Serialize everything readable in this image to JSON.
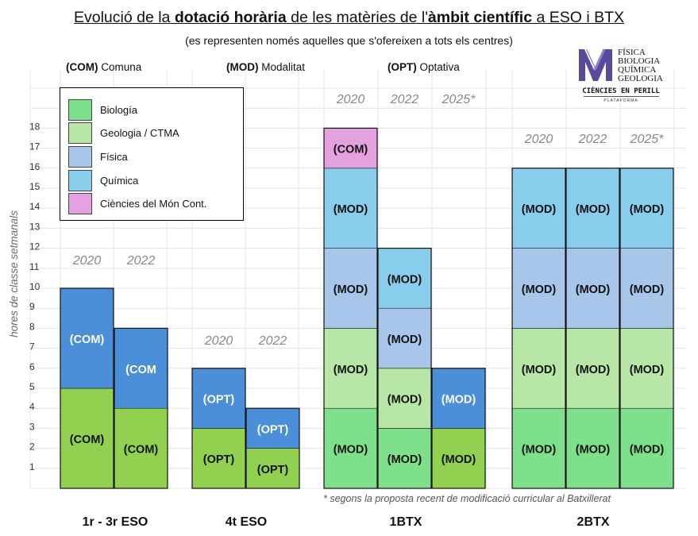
{
  "title": {
    "part1": "Evolució de la ",
    "bold1": "dotació horària",
    "part2": " de les matèries de l'",
    "bold2": "àmbit científic",
    "part3": " a ESO i BTX"
  },
  "subtitle": "(es representen només aquelles que s'ofereixen a tots els centres)",
  "types": [
    {
      "code": "(COM)",
      "name": "Comuna"
    },
    {
      "code": "(MOD)",
      "name": "Modalitat"
    },
    {
      "code": "(OPT)",
      "name": "Optativa"
    }
  ],
  "logo": {
    "lines": [
      "FÍSICA",
      "BIOLOGIA",
      "QUÍMICA",
      "GEOLOGIA"
    ],
    "name": "CIÈNCIES EN PERILL",
    "tagline": "PLATAFORMA"
  },
  "footnote": "* segons la proposta recent de modificació curricular al Batxillerat",
  "colors": {
    "Biologia": "#7ee08a",
    "Geologia / CTMA": "#b8e6a6",
    "Física": "#a7c6ea",
    "Química": "#88cdec",
    "Ciències del Món Cont.": "#e4a1e0",
    "eso_dark_green": "#92d050",
    "eso_blue": "#4a8fd8",
    "grid": "#e3e3e3"
  },
  "chart_data": {
    "type": "bar",
    "stacked": true,
    "ylabel": "hores de classe setmanals",
    "ylim": [
      0,
      18
    ],
    "yticks": [
      1,
      2,
      3,
      4,
      5,
      6,
      7,
      8,
      9,
      10,
      11,
      12,
      13,
      14,
      15,
      16,
      17,
      18
    ],
    "grid": true,
    "legend": {
      "position": "top-left",
      "entries": [
        "Biología",
        "Geologia / CTMA",
        "Física",
        "Química",
        "Ciències del Món Cont."
      ]
    },
    "groups": [
      {
        "label": "1r - 3r ESO",
        "bars": [
          {
            "year": "2020",
            "segments": [
              {
                "subject": "Biologia",
                "value": 5,
                "color": "#92d050",
                "label": "(COM)"
              },
              {
                "subject": "Física",
                "value": 5,
                "color": "#4a8fd8",
                "label": "(COM)"
              }
            ]
          },
          {
            "year": "2022",
            "segments": [
              {
                "subject": "Biologia",
                "value": 4,
                "color": "#92d050",
                "label": "(COM)"
              },
              {
                "subject": "Física",
                "value": 4,
                "color": "#4a8fd8",
                "label": "(COM"
              }
            ]
          }
        ]
      },
      {
        "label": "4t ESO",
        "bars": [
          {
            "year": "2020",
            "segments": [
              {
                "subject": "Biologia",
                "value": 3,
                "color": "#92d050",
                "label": "(OPT)"
              },
              {
                "subject": "Física",
                "value": 3,
                "color": "#4a8fd8",
                "label": "(OPT)"
              }
            ]
          },
          {
            "year": "2022",
            "segments": [
              {
                "subject": "Biologia",
                "value": 2,
                "color": "#92d050",
                "label": "(OPT)"
              },
              {
                "subject": "Física",
                "value": 2,
                "color": "#4a8fd8",
                "label": "(OPT)"
              }
            ]
          }
        ]
      },
      {
        "label": "1BTX",
        "bars": [
          {
            "year": "2020",
            "segments": [
              {
                "subject": "Biologia",
                "value": 4,
                "color": "#7ee08a",
                "label": "(MOD)"
              },
              {
                "subject": "Geologia / CTMA",
                "value": 4,
                "color": "#b8e6a6",
                "label": "(MOD)"
              },
              {
                "subject": "Física",
                "value": 4,
                "color": "#a7c6ea",
                "label": "(MOD)"
              },
              {
                "subject": "Química",
                "value": 4,
                "color": "#88cdec",
                "label": "(MOD)"
              },
              {
                "subject": "Ciències del Món Cont.",
                "value": 2,
                "color": "#e4a1e0",
                "label": "(COM)"
              }
            ]
          },
          {
            "year": "2022",
            "segments": [
              {
                "subject": "Biologia",
                "value": 3,
                "color": "#7ee08a",
                "label": "(MOD)"
              },
              {
                "subject": "Geologia / CTMA",
                "value": 3,
                "color": "#b8e6a6",
                "label": "(MOD)"
              },
              {
                "subject": "Física",
                "value": 3,
                "color": "#a7c6ea",
                "label": "(MOD)"
              },
              {
                "subject": "Química",
                "value": 3,
                "color": "#88cdec",
                "label": "(MOD)"
              }
            ]
          },
          {
            "year": "2025*",
            "segments": [
              {
                "subject": "Biologia",
                "value": 3,
                "color": "#92d050",
                "label": "(MOD)"
              },
              {
                "subject": "Física",
                "value": 3,
                "color": "#4a8fd8",
                "label": "(MOD)"
              }
            ]
          }
        ]
      },
      {
        "label": "2BTX",
        "bars": [
          {
            "year": "2020",
            "segments": [
              {
                "subject": "Biologia",
                "value": 4,
                "color": "#7ee08a",
                "label": "(MOD)"
              },
              {
                "subject": "Geologia / CTMA",
                "value": 4,
                "color": "#b8e6a6",
                "label": "(MOD)"
              },
              {
                "subject": "Física",
                "value": 4,
                "color": "#a7c6ea",
                "label": "(MOD)"
              },
              {
                "subject": "Química",
                "value": 4,
                "color": "#88cdec",
                "label": "(MOD)"
              }
            ]
          },
          {
            "year": "2022",
            "segments": [
              {
                "subject": "Biologia",
                "value": 4,
                "color": "#7ee08a",
                "label": "(MOD)"
              },
              {
                "subject": "Geologia / CTMA",
                "value": 4,
                "color": "#b8e6a6",
                "label": "(MOD)"
              },
              {
                "subject": "Física",
                "value": 4,
                "color": "#a7c6ea",
                "label": "(MOD)"
              },
              {
                "subject": "Química",
                "value": 4,
                "color": "#88cdec",
                "label": "(MOD)"
              }
            ]
          },
          {
            "year": "2025*",
            "segments": [
              {
                "subject": "Biologia",
                "value": 4,
                "color": "#7ee08a",
                "label": "(MOD)"
              },
              {
                "subject": "Geologia / CTMA",
                "value": 4,
                "color": "#b8e6a6",
                "label": "(MOD)"
              },
              {
                "subject": "Física",
                "value": 4,
                "color": "#a7c6ea",
                "label": "(MOD)"
              },
              {
                "subject": "Química",
                "value": 4,
                "color": "#88cdec",
                "label": "(MOD)"
              }
            ]
          }
        ]
      }
    ]
  }
}
